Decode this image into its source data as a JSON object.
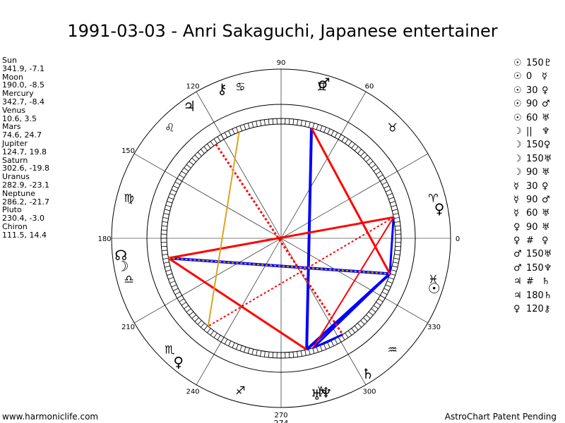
{
  "title": "1991-03-03 - Anri Sakaguchi, Japanese entertainer",
  "positions": [
    {
      "name": "Sun",
      "coords": "341.9, -7.1"
    },
    {
      "name": "Moon",
      "coords": "190.0, -8.5"
    },
    {
      "name": "Mercury",
      "coords": "342.7, -8.4"
    },
    {
      "name": "Venus",
      "coords": "10.6, 3.5"
    },
    {
      "name": "Mars",
      "coords": "74.6, 24.7"
    },
    {
      "name": "Jupiter",
      "coords": "124.7, 19.8"
    },
    {
      "name": "Saturn",
      "coords": "302.6, -19.8"
    },
    {
      "name": "Uranus",
      "coords": "282.9, -23.1"
    },
    {
      "name": "Neptune",
      "coords": "286.2, -21.7"
    },
    {
      "name": "Pluto",
      "coords": "230.4, -3.0"
    },
    {
      "name": "Chiron",
      "coords": "111.5, 14.4"
    }
  ],
  "aspect_list": [
    {
      "p1": "☉",
      "asp": "150",
      "p2": "♇"
    },
    {
      "p1": "☉",
      "asp": "0",
      "p2": "☿"
    },
    {
      "p1": "☉",
      "asp": "30",
      "p2": "♀"
    },
    {
      "p1": "☉",
      "asp": "90",
      "p2": "♂"
    },
    {
      "p1": "☉",
      "asp": "60",
      "p2": "♅"
    },
    {
      "p1": "☽",
      "asp": "||",
      "p2": "♆"
    },
    {
      "p1": "☽",
      "asp": "150",
      "p2": "♀"
    },
    {
      "p1": "☽",
      "asp": "150",
      "p2": "♅"
    },
    {
      "p1": "☽",
      "asp": "90",
      "p2": "♅"
    },
    {
      "p1": "☿",
      "asp": "30",
      "p2": "♀"
    },
    {
      "p1": "☿",
      "asp": "90",
      "p2": "♂"
    },
    {
      "p1": "☿",
      "asp": "60",
      "p2": "♅"
    },
    {
      "p1": "♀",
      "asp": "90",
      "p2": "♅"
    },
    {
      "p1": "♀",
      "asp": "#",
      "p2": "♀"
    },
    {
      "p1": "♂",
      "asp": "150",
      "p2": "♅"
    },
    {
      "p1": "♂",
      "asp": "150",
      "p2": "♆"
    },
    {
      "p1": "♃",
      "asp": "#",
      "p2": "♄"
    },
    {
      "p1": "♃",
      "asp": "180",
      "p2": "♄"
    },
    {
      "p1": "♀",
      "asp": "120",
      "p2": "⚷"
    }
  ],
  "degree_labels": [
    {
      "deg": 0,
      "label": "0"
    },
    {
      "deg": 30,
      "label": ""
    },
    {
      "deg": 60,
      "label": "60"
    },
    {
      "deg": 90,
      "label": "90"
    },
    {
      "deg": 120,
      "label": "120"
    },
    {
      "deg": 150,
      "label": "150"
    },
    {
      "deg": 180,
      "label": "180"
    },
    {
      "deg": 210,
      "label": "210"
    },
    {
      "deg": 240,
      "label": "240"
    },
    {
      "deg": 270,
      "label": "270"
    },
    {
      "deg": 300,
      "label": "300"
    },
    {
      "deg": 330,
      "label": "330"
    }
  ],
  "bottom_label": "274",
  "zodiac_signs": [
    {
      "deg": 15,
      "glyph": "♈"
    },
    {
      "deg": 45,
      "glyph": "♉"
    },
    {
      "deg": 75,
      "glyph": "♊"
    },
    {
      "deg": 105,
      "glyph": "♋"
    },
    {
      "deg": 135,
      "glyph": "♌"
    },
    {
      "deg": 165,
      "glyph": "♍"
    },
    {
      "deg": 195,
      "glyph": "♎"
    },
    {
      "deg": 225,
      "glyph": "♏"
    },
    {
      "deg": 255,
      "glyph": "♐"
    },
    {
      "deg": 285,
      "glyph": "♑"
    },
    {
      "deg": 315,
      "glyph": "♒"
    },
    {
      "deg": 345,
      "glyph": "♓"
    }
  ],
  "planets": [
    {
      "name": "Sun",
      "glyph": "☉",
      "deg": 341.9
    },
    {
      "name": "Moon",
      "glyph": "☽",
      "deg": 190.0
    },
    {
      "name": "Venus",
      "glyph": "♀",
      "deg": 10.6
    },
    {
      "name": "Mars",
      "glyph": "♂",
      "deg": 74.6
    },
    {
      "name": "Jupiter",
      "glyph": "♃",
      "deg": 124.7
    },
    {
      "name": "Saturn",
      "glyph": "♄",
      "deg": 302.6
    },
    {
      "name": "Uranus",
      "glyph": "♅",
      "deg": 282.9
    },
    {
      "name": "Neptune",
      "glyph": "♆",
      "deg": 286.2
    },
    {
      "name": "Pluto",
      "glyph": "♀",
      "deg": 230.4
    },
    {
      "name": "Chiron",
      "glyph": "⚷",
      "deg": 111.5
    },
    {
      "name": "Node",
      "glyph": "☊",
      "deg": 186.0
    }
  ],
  "aspect_lines": [
    {
      "a": 341.9,
      "b": 282.9,
      "color": "#0000ff",
      "width": 4,
      "dash": false
    },
    {
      "a": 341.9,
      "b": 190.0,
      "color": "#0000ff",
      "width": 4,
      "dash": false
    },
    {
      "a": 74.6,
      "b": 282.9,
      "color": "#0000ff",
      "width": 4,
      "dash": false
    },
    {
      "a": 10.6,
      "b": 341.9,
      "color": "#0000ff",
      "width": 3,
      "dash": false
    },
    {
      "a": 302.6,
      "b": 286.2,
      "color": "#0000ff",
      "width": 3,
      "dash": false
    },
    {
      "a": 341.9,
      "b": 286.2,
      "color": "#0000ff",
      "width": 3,
      "dash": false
    },
    {
      "a": 74.6,
      "b": 341.9,
      "color": "#ff0000",
      "width": 3,
      "dash": false
    },
    {
      "a": 10.6,
      "b": 190.0,
      "color": "#ff0000",
      "width": 3,
      "dash": false
    },
    {
      "a": 190.0,
      "b": 282.9,
      "color": "#ff0000",
      "width": 3,
      "dash": false
    },
    {
      "a": 10.6,
      "b": 286.2,
      "color": "#ff0000",
      "width": 2,
      "dash": false
    },
    {
      "a": 124.7,
      "b": 302.6,
      "color": "#ff0000",
      "width": 3,
      "dash": true
    },
    {
      "a": 10.6,
      "b": 230.4,
      "color": "#ff0000",
      "width": 2,
      "dash": true
    },
    {
      "a": 190.0,
      "b": 341.9,
      "color": "#c8a000",
      "width": 2,
      "dash": true
    },
    {
      "a": 230.4,
      "b": 111.5,
      "color": "#daa520",
      "width": 2,
      "dash": false
    }
  ],
  "footer_left": "www.harmoniclife.com",
  "footer_right": "AstroChart Patent Pending"
}
